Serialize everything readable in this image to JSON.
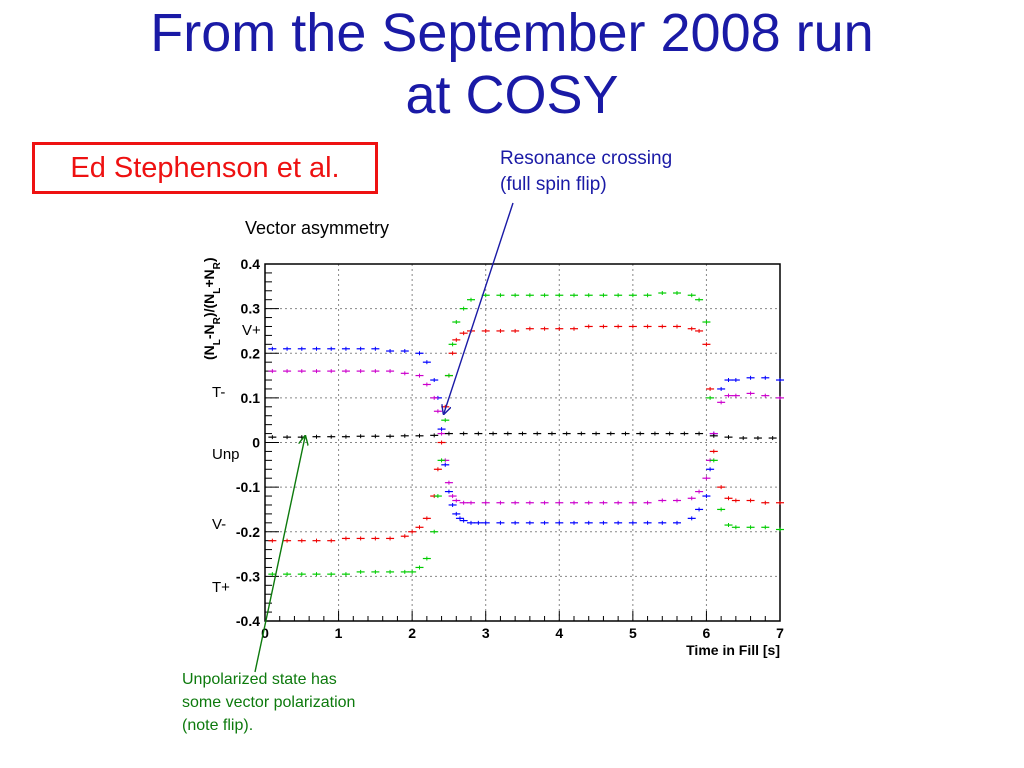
{
  "slide": {
    "title_line1": "From the September 2008 run",
    "title_line2": "at COSY",
    "author": "Ed Stephenson et al.",
    "annotation_resonance_line1": "Resonance crossing",
    "annotation_resonance_line2": "(full spin flip)",
    "annotation_unpolarized_line1": "Unpolarized state has",
    "annotation_unpolarized_line2": "some vector polarization",
    "annotation_unpolarized_line3": "(note flip).",
    "colors": {
      "title": "#1a1aa6",
      "author": "#ee1111",
      "resonance_arrow": "#1a1aa6",
      "unpolarized_arrow": "#0d7a0d"
    }
  },
  "chart_data": {
    "type": "scatter",
    "title": "Vector asymmetry",
    "xlabel": "Time in Fill [s]",
    "ylabel": "(N_L-N_R)/(N_L+N_R)",
    "xlim": [
      0,
      7
    ],
    "ylim": [
      -0.4,
      0.4
    ],
    "xticks": [
      "0",
      "1",
      "2",
      "3",
      "4",
      "5",
      "6",
      "7"
    ],
    "yticks": [
      "-0.4",
      "-0.3",
      "-0.2",
      "-0.1",
      "0",
      "0.1",
      "0.2",
      "0.3",
      "0.4"
    ],
    "ytick_values": [
      -0.4,
      -0.3,
      -0.2,
      -0.1,
      0,
      0.1,
      0.2,
      0.3,
      0.4
    ],
    "grid": true,
    "state_labels": [
      "V+",
      "T-",
      "Unp",
      "V-",
      "T+"
    ],
    "series": [
      {
        "color": "#0000ff",
        "x": [
          0.1,
          0.3,
          0.5,
          0.7,
          0.9,
          1.1,
          1.3,
          1.5,
          1.7,
          1.9,
          2.1,
          2.2,
          2.3,
          2.35,
          2.4,
          2.45,
          2.5,
          2.55,
          2.6,
          2.65,
          2.7,
          2.8,
          2.9,
          3.0,
          3.2,
          3.4,
          3.6,
          3.8,
          4.0,
          4.2,
          4.4,
          4.6,
          4.8,
          5.0,
          5.2,
          5.4,
          5.6,
          5.8,
          5.9,
          6.0,
          6.05,
          6.1,
          6.2,
          6.3,
          6.4,
          6.6,
          6.8,
          7.0
        ],
        "y": [
          0.21,
          0.21,
          0.21,
          0.21,
          0.21,
          0.21,
          0.21,
          0.21,
          0.205,
          0.205,
          0.2,
          0.18,
          0.14,
          0.1,
          0.03,
          -0.05,
          -0.11,
          -0.14,
          -0.16,
          -0.17,
          -0.175,
          -0.18,
          -0.18,
          -0.18,
          -0.18,
          -0.18,
          -0.18,
          -0.18,
          -0.18,
          -0.18,
          -0.18,
          -0.18,
          -0.18,
          -0.18,
          -0.18,
          -0.18,
          -0.18,
          -0.17,
          -0.15,
          -0.12,
          -0.06,
          0.02,
          0.12,
          0.14,
          0.14,
          0.145,
          0.145,
          0.14
        ]
      },
      {
        "color": "#cc00cc",
        "x": [
          0.1,
          0.3,
          0.5,
          0.7,
          0.9,
          1.1,
          1.3,
          1.5,
          1.7,
          1.9,
          2.1,
          2.2,
          2.3,
          2.35,
          2.4,
          2.45,
          2.5,
          2.55,
          2.6,
          2.7,
          2.8,
          3.0,
          3.2,
          3.4,
          3.6,
          3.8,
          4.0,
          4.2,
          4.4,
          4.6,
          4.8,
          5.0,
          5.2,
          5.4,
          5.6,
          5.8,
          5.9,
          6.0,
          6.05,
          6.1,
          6.2,
          6.3,
          6.4,
          6.6,
          6.8,
          7.0
        ],
        "y": [
          0.16,
          0.16,
          0.16,
          0.16,
          0.16,
          0.16,
          0.16,
          0.16,
          0.16,
          0.155,
          0.15,
          0.13,
          0.1,
          0.07,
          0.02,
          -0.04,
          -0.09,
          -0.12,
          -0.13,
          -0.135,
          -0.135,
          -0.135,
          -0.135,
          -0.135,
          -0.135,
          -0.135,
          -0.135,
          -0.135,
          -0.135,
          -0.135,
          -0.135,
          -0.135,
          -0.135,
          -0.13,
          -0.13,
          -0.125,
          -0.11,
          -0.08,
          -0.04,
          0.02,
          0.09,
          0.105,
          0.105,
          0.11,
          0.105,
          0.1
        ]
      },
      {
        "color": "#000000",
        "x": [
          0.1,
          0.3,
          0.5,
          0.7,
          0.9,
          1.1,
          1.3,
          1.5,
          1.7,
          1.9,
          2.1,
          2.3,
          2.5,
          2.7,
          2.9,
          3.1,
          3.3,
          3.5,
          3.7,
          3.9,
          4.1,
          4.3,
          4.5,
          4.7,
          4.9,
          5.1,
          5.3,
          5.5,
          5.7,
          5.9,
          6.1,
          6.3,
          6.5,
          6.7,
          6.9
        ],
        "y": [
          0.012,
          0.012,
          0.012,
          0.013,
          0.013,
          0.013,
          0.014,
          0.014,
          0.014,
          0.015,
          0.015,
          0.016,
          0.02,
          0.02,
          0.02,
          0.02,
          0.02,
          0.02,
          0.02,
          0.02,
          0.02,
          0.02,
          0.02,
          0.02,
          0.02,
          0.02,
          0.02,
          0.02,
          0.02,
          0.02,
          0.015,
          0.012,
          0.01,
          0.01,
          0.01
        ]
      },
      {
        "color": "#ee0000",
        "x": [
          0.1,
          0.3,
          0.5,
          0.7,
          0.9,
          1.1,
          1.3,
          1.5,
          1.7,
          1.9,
          2.0,
          2.1,
          2.2,
          2.3,
          2.35,
          2.4,
          2.45,
          2.5,
          2.55,
          2.6,
          2.7,
          2.8,
          3.0,
          3.2,
          3.4,
          3.6,
          3.8,
          4.0,
          4.2,
          4.4,
          4.6,
          4.8,
          5.0,
          5.2,
          5.4,
          5.6,
          5.8,
          5.9,
          6.0,
          6.05,
          6.1,
          6.2,
          6.3,
          6.4,
          6.6,
          6.8,
          7.0
        ],
        "y": [
          -0.22,
          -0.22,
          -0.22,
          -0.22,
          -0.22,
          -0.215,
          -0.215,
          -0.215,
          -0.215,
          -0.21,
          -0.2,
          -0.19,
          -0.17,
          -0.12,
          -0.06,
          0.0,
          0.08,
          0.15,
          0.2,
          0.23,
          0.245,
          0.25,
          0.25,
          0.25,
          0.25,
          0.255,
          0.255,
          0.255,
          0.255,
          0.26,
          0.26,
          0.26,
          0.26,
          0.26,
          0.26,
          0.26,
          0.255,
          0.25,
          0.22,
          0.12,
          -0.02,
          -0.1,
          -0.125,
          -0.13,
          -0.13,
          -0.135,
          -0.135
        ]
      },
      {
        "color": "#00cc00",
        "x": [
          0.1,
          0.3,
          0.5,
          0.7,
          0.9,
          1.1,
          1.3,
          1.5,
          1.7,
          1.9,
          2.0,
          2.1,
          2.2,
          2.3,
          2.35,
          2.4,
          2.45,
          2.5,
          2.55,
          2.6,
          2.7,
          2.8,
          3.0,
          3.2,
          3.4,
          3.6,
          3.8,
          4.0,
          4.2,
          4.4,
          4.6,
          4.8,
          5.0,
          5.2,
          5.4,
          5.6,
          5.8,
          5.9,
          6.0,
          6.05,
          6.1,
          6.2,
          6.3,
          6.4,
          6.6,
          6.8,
          7.0
        ],
        "y": [
          -0.295,
          -0.295,
          -0.295,
          -0.295,
          -0.295,
          -0.295,
          -0.29,
          -0.29,
          -0.29,
          -0.29,
          -0.29,
          -0.28,
          -0.26,
          -0.2,
          -0.12,
          -0.04,
          0.05,
          0.15,
          0.22,
          0.27,
          0.3,
          0.32,
          0.33,
          0.33,
          0.33,
          0.33,
          0.33,
          0.33,
          0.33,
          0.33,
          0.33,
          0.33,
          0.33,
          0.33,
          0.335,
          0.335,
          0.33,
          0.32,
          0.27,
          0.1,
          -0.04,
          -0.15,
          -0.185,
          -0.19,
          -0.19,
          -0.19,
          -0.195
        ]
      }
    ]
  }
}
